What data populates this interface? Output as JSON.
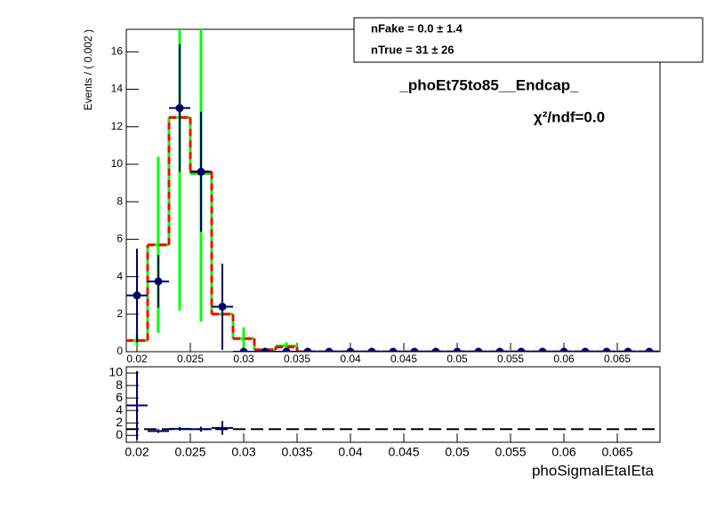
{
  "chart_data": [
    {
      "type": "fit",
      "title": "_phoEt75to85__Endcap_",
      "annotation": "χ²/ndf=0.0",
      "ylabel": "Events / ( 0.002 )",
      "stats": [
        "nFake =  0.0 ± 1.4",
        "nTrue =  31 ± 26"
      ],
      "x": [
        0.02,
        0.022,
        0.024,
        0.026,
        0.028,
        0.03,
        0.032,
        0.034,
        0.036,
        0.038,
        0.04,
        0.042,
        0.044,
        0.046,
        0.048,
        0.05,
        0.052,
        0.054,
        0.056,
        0.058,
        0.06,
        0.062,
        0.064,
        0.066,
        0.068
      ],
      "xlim": [
        0.019,
        0.069
      ],
      "xticks": [
        0.02,
        0.025,
        0.03,
        0.035,
        0.04,
        0.045,
        0.05,
        0.055,
        0.06,
        0.065
      ],
      "ylim": [
        0,
        17.2
      ],
      "yticks": [
        0,
        2,
        4,
        6,
        8,
        10,
        12,
        14,
        16
      ],
      "series": [
        {
          "color": "#00ff00",
          "style": "step",
          "values": [
            0.6,
            5.7,
            12.5,
            9.5,
            2.0,
            0.7,
            0.1,
            0.3,
            0,
            0,
            0,
            0,
            0,
            0,
            0,
            0,
            0,
            0,
            0,
            0,
            0,
            0,
            0,
            0,
            0
          ],
          "errors": [
            0.3,
            4.7,
            10.3,
            7.9,
            0,
            0.6,
            0,
            0.2,
            0,
            0,
            0.2,
            0.2,
            0,
            0,
            0,
            0,
            0,
            0,
            0,
            0,
            0,
            0,
            0,
            0,
            0
          ]
        },
        {
          "color": "#ff0000",
          "style": "dashed-step",
          "values": [
            0.6,
            5.7,
            12.5,
            9.6,
            2.0,
            0.7,
            0.1,
            0.25,
            0,
            0,
            0,
            0,
            0,
            0,
            0,
            0,
            0,
            0,
            0,
            0,
            0,
            0,
            0,
            0,
            0
          ]
        },
        {
          "color": "#000066",
          "style": "points",
          "values": [
            3.0,
            3.75,
            13.0,
            9.6,
            2.4,
            0,
            0,
            0,
            0,
            0,
            0,
            0,
            0,
            0,
            0,
            0,
            0,
            0,
            0,
            0,
            0,
            0,
            0,
            0,
            0
          ],
          "errors": [
            2.5,
            1.4,
            3.4,
            3.2,
            2.3,
            0,
            0,
            0,
            0,
            0,
            0,
            0,
            0,
            0,
            0,
            0,
            0,
            0,
            0,
            0,
            0,
            0,
            0,
            0,
            0
          ]
        }
      ]
    },
    {
      "type": "ratio",
      "xlabel": "phoSigmaIEtaIEta",
      "x": [
        0.02,
        0.022,
        0.024,
        0.026,
        0.028
      ],
      "values": [
        4.8,
        0.7,
        1.05,
        1.0,
        1.2
      ],
      "errors": [
        5.5,
        0.3,
        0.3,
        0.4,
        1.1
      ],
      "color": "#000066",
      "reference": 1,
      "xlim": [
        0.019,
        0.069
      ],
      "xticks": [
        0.02,
        0.025,
        0.03,
        0.035,
        0.04,
        0.045,
        0.05,
        0.055,
        0.06,
        0.065
      ],
      "ylim": [
        -1.1,
        11
      ],
      "yticks": [
        0,
        2,
        4,
        6,
        8,
        10
      ]
    }
  ]
}
